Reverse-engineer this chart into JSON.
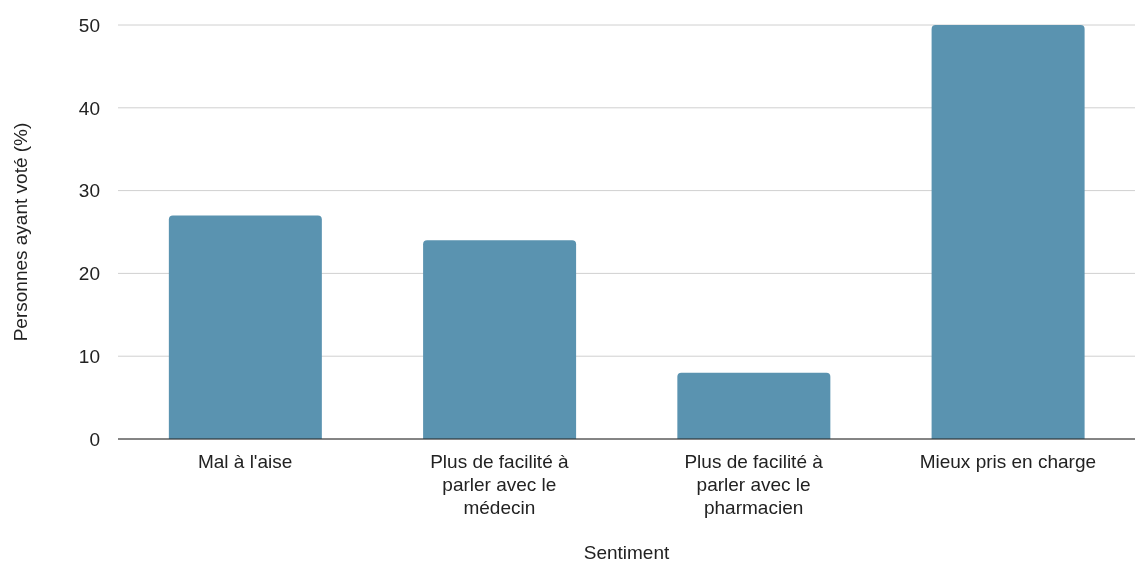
{
  "chart_data": {
    "type": "bar",
    "xlabel": "Sentiment",
    "ylabel": "Personnes ayant voté (%)",
    "categories": [
      "Mal à l'aise",
      "Plus de facilité à parler avec le médecin",
      "Plus de facilité à parler avec le pharmacien",
      "Mieux pris en charge"
    ],
    "values": [
      27,
      24,
      8,
      50
    ],
    "color": "#5a93b0",
    "ylim": [
      0,
      50
    ],
    "yticks": [
      0,
      10,
      20,
      30,
      40,
      50
    ],
    "grid": "y"
  }
}
